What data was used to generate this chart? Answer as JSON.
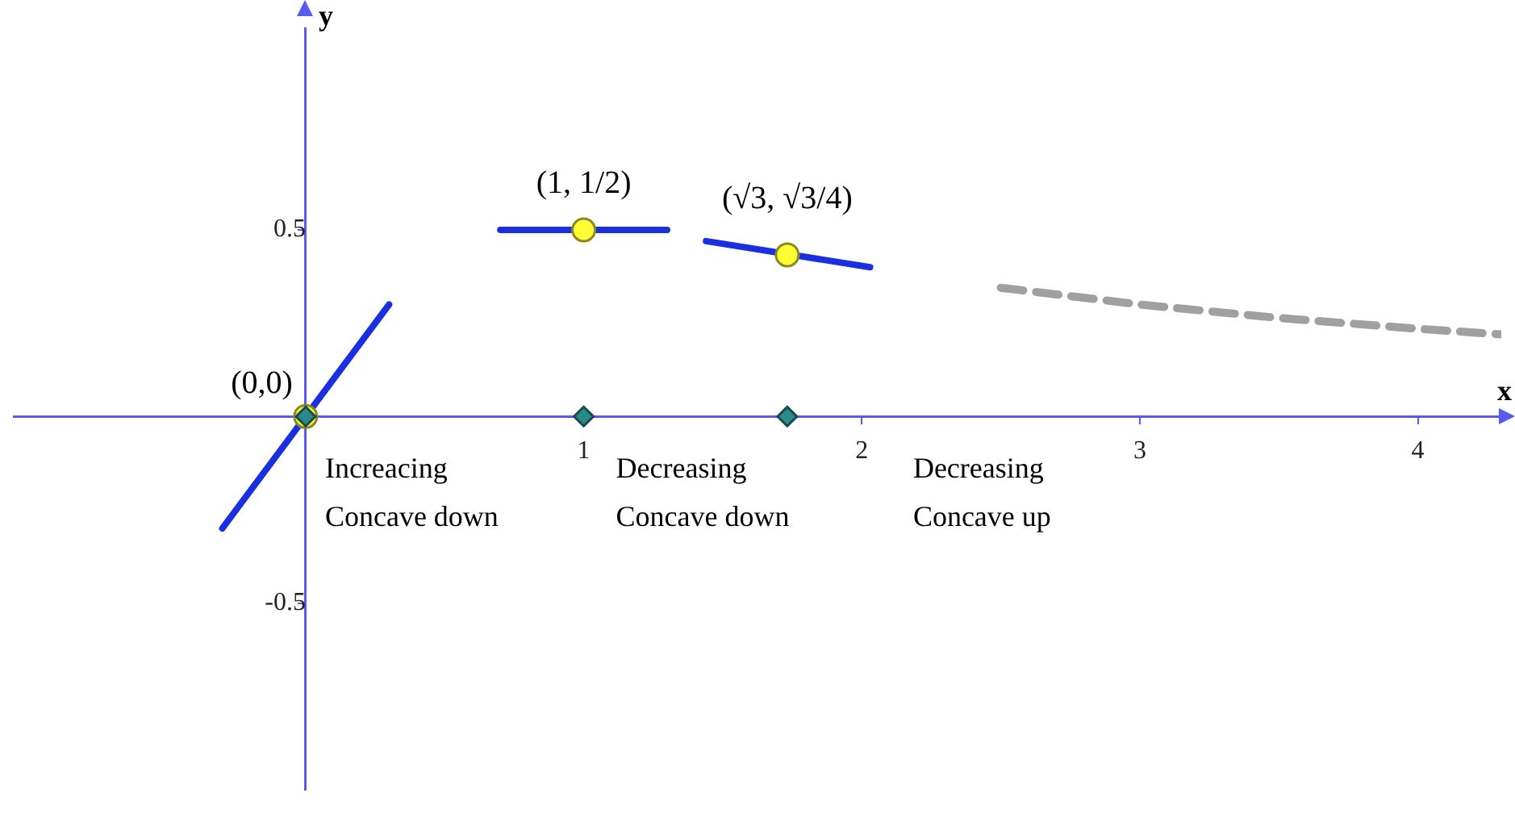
{
  "chart_data": {
    "type": "line",
    "xlabel": "x",
    "ylabel": "y",
    "xlim": [
      -1.05,
      4.3
    ],
    "ylim": [
      -1.0,
      1.04
    ],
    "xticks": [
      1,
      2,
      3,
      4
    ],
    "yticks": [
      -0.5,
      0.5
    ],
    "series": [
      {
        "type": "line",
        "color": "#1a2fe0",
        "x": [
          -0.3,
          0.3
        ],
        "values": [
          -0.3,
          0.3
        ],
        "marker": "none"
      },
      {
        "type": "line",
        "color": "#1a2fe0",
        "x": [
          0.7,
          1.3
        ],
        "values": [
          0.5,
          0.5
        ],
        "marker": "none"
      },
      {
        "type": "line",
        "color": "#1a2fe0",
        "x": [
          1.44,
          2.03
        ],
        "values": [
          0.47,
          0.4
        ],
        "marker": "none"
      },
      {
        "type": "line",
        "color": "#a0a0a0",
        "line_style": "dashed",
        "x": [
          2.5,
          3,
          3.5,
          4,
          4.3
        ],
        "values": [
          0.345,
          0.3,
          0.264,
          0.235,
          0.22
        ],
        "marker": "none"
      },
      {
        "type": "scatter",
        "color": "#ffff33",
        "x": [
          0,
          1,
          1.732
        ],
        "values": [
          0,
          0.5,
          0.433
        ],
        "marker": "circle"
      },
      {
        "type": "scatter",
        "color": "#2a8a8a",
        "x": [
          0,
          1,
          1.732
        ],
        "values": [
          0,
          0,
          0
        ],
        "marker": "diamond"
      }
    ],
    "annotations": [
      {
        "text": "(0,0)",
        "x": 0,
        "y": 0
      },
      {
        "text": "(1, 1/2)",
        "x": 1,
        "y": 0.5
      },
      {
        "text": "(√3, √3/4)",
        "x": 1.732,
        "y": 0.433
      },
      "Increacing\nConcave down",
      "Decreasing\nConcave down",
      "Decreasing\nConcave up"
    ]
  }
}
